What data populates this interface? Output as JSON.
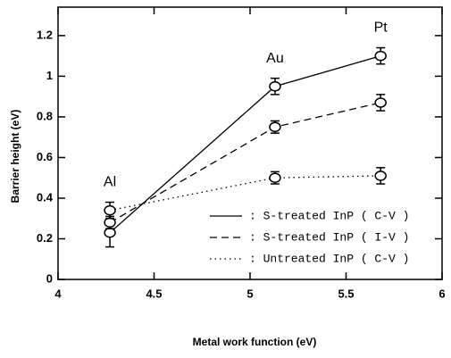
{
  "chart_data": {
    "type": "line",
    "xlabel": "Metal work function (eV)",
    "ylabel": "Barrier height (eV)",
    "x": [
      4.27,
      5.13,
      5.68
    ],
    "annotations": [
      "Al",
      "Au",
      "Pt"
    ],
    "series": [
      {
        "name": ": S-treated InP ( C-V )",
        "color": "#000000",
        "dash": "solid",
        "values": [
          0.23,
          0.95,
          1.1
        ],
        "errors": [
          0.07,
          0.04,
          0.04
        ]
      },
      {
        "name": ": S-treated InP ( I-V )",
        "color": "#000000",
        "dash": "dashed",
        "values": [
          0.28,
          0.75,
          0.87
        ],
        "errors": [
          0.03,
          0.03,
          0.04
        ]
      },
      {
        "name": ": Untreated InP ( C-V )",
        "color": "#000000",
        "dash": "dotted",
        "values": [
          0.34,
          0.5,
          0.51
        ],
        "errors": [
          0.04,
          0.03,
          0.04
        ]
      }
    ],
    "xlim": [
      4,
      6
    ],
    "xticks": [
      4,
      4.5,
      5,
      5.5,
      6
    ],
    "ylim": [
      0,
      1.34
    ],
    "yticks": [
      0,
      0.2,
      0.4,
      0.6,
      0.8,
      1,
      1.2
    ],
    "legend": "lower right"
  }
}
